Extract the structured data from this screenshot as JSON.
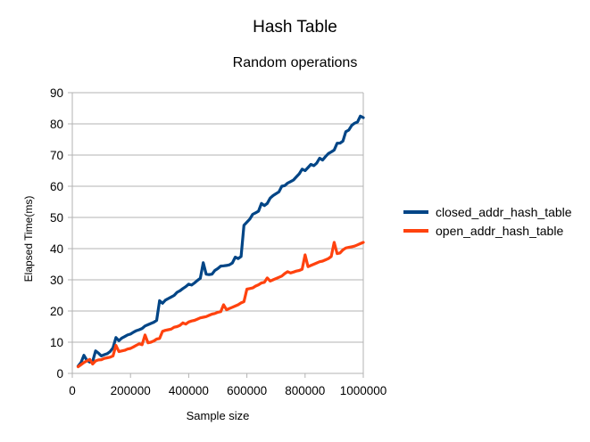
{
  "chart_data": {
    "type": "line",
    "title": "Hash Table",
    "subtitle": "Random operations",
    "xlabel": "Sample size",
    "ylabel": "Elapsed Time(ms)",
    "xlim": [
      0,
      1000000
    ],
    "ylim": [
      0,
      90
    ],
    "xticks": [
      0,
      200000,
      400000,
      600000,
      800000,
      1000000
    ],
    "xtick_labels": [
      "0",
      "200000",
      "400000",
      "600000",
      "800000",
      "1000000"
    ],
    "yticks": [
      0,
      10,
      20,
      30,
      40,
      50,
      60,
      70,
      80,
      90
    ],
    "ytick_labels": [
      "0",
      "10",
      "20",
      "30",
      "40",
      "50",
      "60",
      "70",
      "80",
      "90"
    ],
    "grid": "horizontal",
    "legend_position": "right",
    "series": [
      {
        "name": "closed_addr_hash_table",
        "color": "#004586",
        "x": [
          20000,
          30000,
          40000,
          50000,
          60000,
          70000,
          80000,
          90000,
          100000,
          110000,
          120000,
          130000,
          140000,
          150000,
          160000,
          170000,
          180000,
          190000,
          200000,
          210000,
          220000,
          230000,
          240000,
          250000,
          260000,
          270000,
          280000,
          290000,
          300000,
          310000,
          320000,
          330000,
          340000,
          350000,
          360000,
          370000,
          380000,
          390000,
          400000,
          410000,
          420000,
          430000,
          440000,
          450000,
          460000,
          470000,
          480000,
          490000,
          500000,
          510000,
          520000,
          530000,
          540000,
          550000,
          560000,
          570000,
          580000,
          590000,
          600000,
          610000,
          620000,
          630000,
          640000,
          650000,
          660000,
          670000,
          680000,
          690000,
          700000,
          710000,
          720000,
          730000,
          740000,
          750000,
          760000,
          770000,
          780000,
          790000,
          800000,
          810000,
          820000,
          830000,
          840000,
          850000,
          860000,
          870000,
          880000,
          890000,
          900000,
          910000,
          920000,
          930000,
          940000,
          950000,
          960000,
          970000,
          980000,
          990000,
          1000000
        ],
        "y": [
          2.3,
          3.5,
          5.8,
          4.2,
          3.6,
          3.8,
          7.2,
          6.5,
          5.6,
          6,
          6.3,
          7,
          8.2,
          11.5,
          10.5,
          11.3,
          11.8,
          12.3,
          12.6,
          13.2,
          13.7,
          14,
          14.4,
          15.2,
          15.6,
          16,
          16.4,
          17,
          23.3,
          22.5,
          23.5,
          24,
          24.5,
          25,
          26,
          26.5,
          27.2,
          27.8,
          28.6,
          28.3,
          29,
          29.8,
          30.5,
          35.5,
          31.8,
          31.7,
          31.8,
          33,
          33.6,
          34.4,
          34.5,
          34.6,
          34.8,
          35.4,
          37.3,
          36.8,
          37.5,
          47.5,
          48.5,
          49.5,
          51,
          51.5,
          52,
          54.5,
          53.8,
          54.5,
          56.2,
          57,
          57.6,
          58.2,
          60,
          60.2,
          61,
          61.5,
          62,
          63,
          64,
          65.5,
          65,
          66,
          67,
          66.6,
          67.4,
          69,
          68.4,
          69.5,
          70.5,
          71,
          71.6,
          73.8,
          73.8,
          74.5,
          77.5,
          78,
          79.5,
          80.2,
          80.6,
          82.5,
          82
        ]
      },
      {
        "name": "open_addr_hash_table",
        "color": "#ff420e",
        "x": [
          20000,
          30000,
          40000,
          50000,
          60000,
          70000,
          80000,
          90000,
          100000,
          110000,
          120000,
          130000,
          140000,
          150000,
          160000,
          170000,
          180000,
          190000,
          200000,
          210000,
          220000,
          230000,
          240000,
          250000,
          260000,
          270000,
          280000,
          290000,
          300000,
          310000,
          320000,
          330000,
          340000,
          350000,
          360000,
          370000,
          380000,
          390000,
          400000,
          410000,
          420000,
          430000,
          440000,
          450000,
          460000,
          470000,
          480000,
          490000,
          500000,
          510000,
          520000,
          530000,
          540000,
          550000,
          560000,
          570000,
          580000,
          590000,
          600000,
          610000,
          620000,
          630000,
          640000,
          650000,
          660000,
          670000,
          680000,
          690000,
          700000,
          710000,
          720000,
          730000,
          740000,
          750000,
          760000,
          770000,
          780000,
          790000,
          800000,
          810000,
          820000,
          830000,
          840000,
          850000,
          860000,
          870000,
          880000,
          890000,
          900000,
          910000,
          920000,
          930000,
          940000,
          950000,
          960000,
          970000,
          980000,
          990000,
          1000000
        ],
        "y": [
          2.1,
          2.8,
          3.5,
          4,
          4.5,
          3,
          4,
          4.3,
          4.4,
          4.8,
          5,
          5.2,
          5.6,
          9,
          7,
          7.2,
          7.4,
          7.8,
          8,
          8.5,
          9,
          9.5,
          9.2,
          12.3,
          9.8,
          10,
          10.4,
          11,
          11.2,
          13.5,
          13.8,
          14,
          14.2,
          14.8,
          15,
          15.4,
          16.2,
          15.8,
          16.5,
          16.8,
          17,
          17.4,
          17.8,
          18,
          18.2,
          18.6,
          19,
          19.2,
          19.6,
          19.8,
          22,
          20.4,
          20.8,
          21.2,
          21.6,
          22,
          22.6,
          23,
          27,
          27.2,
          27.4,
          28,
          28.4,
          29,
          29.2,
          30.6,
          29.6,
          30,
          30.4,
          30.8,
          31.2,
          32,
          32.6,
          32.2,
          32.5,
          32.8,
          33,
          33.4,
          38,
          34.2,
          34.6,
          35,
          35.4,
          35.8,
          36,
          36.4,
          36.8,
          37.5,
          42,
          38.4,
          38.6,
          39.6,
          40.2,
          40.4,
          40.6,
          40.8,
          41.2,
          41.6,
          42
        ]
      }
    ]
  }
}
